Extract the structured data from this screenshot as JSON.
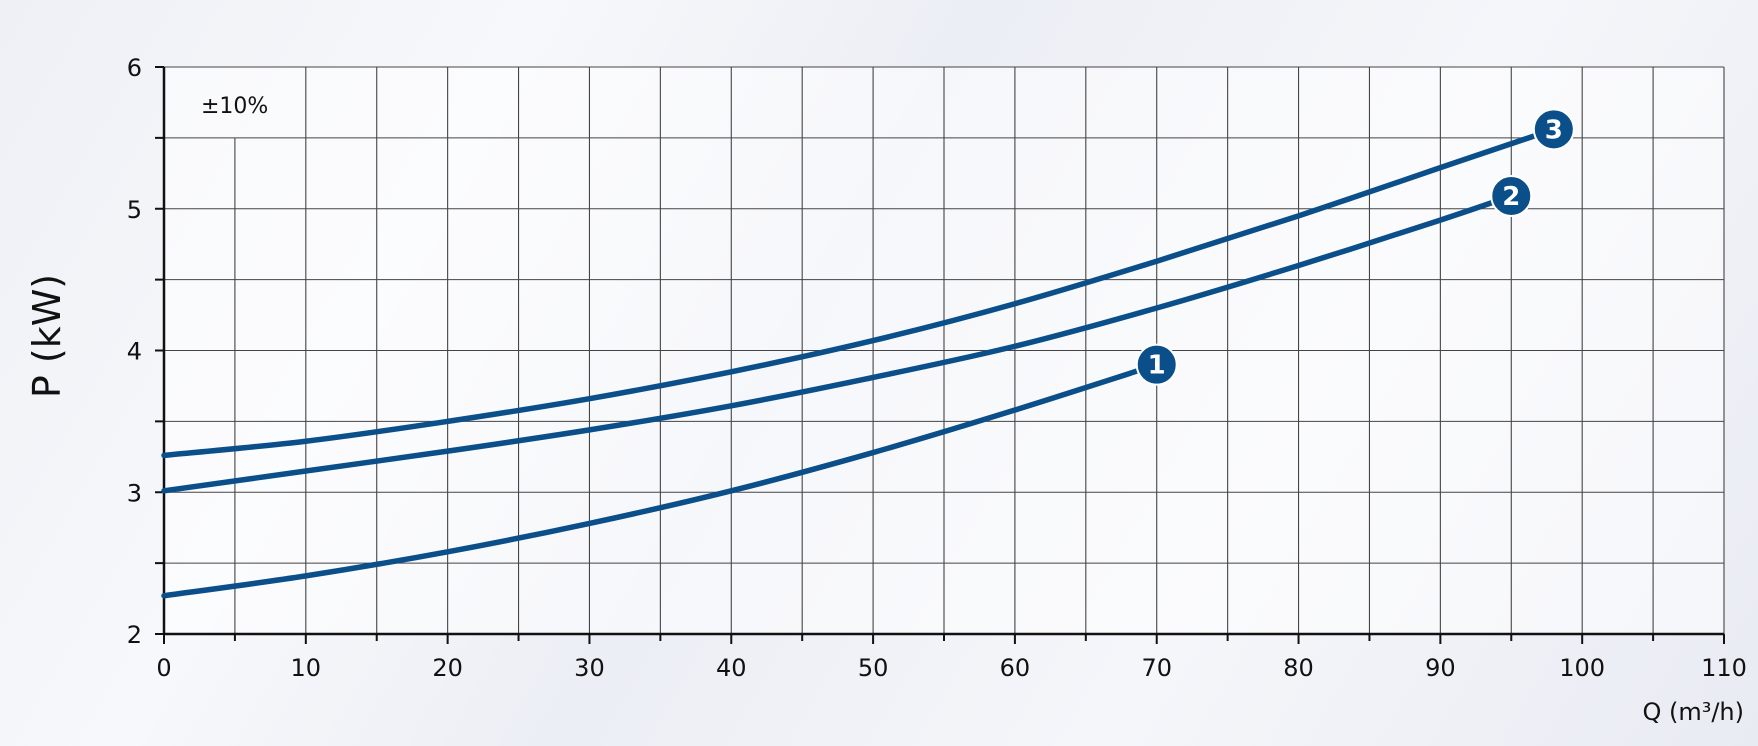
{
  "chart_data": {
    "type": "line",
    "title": "",
    "xlabel": "Q (m³/h)",
    "ylabel": "P (kW)",
    "tolerance_note": "±10%",
    "xlim": [
      0,
      110
    ],
    "ylim": [
      2,
      6
    ],
    "x_ticks": [
      "0",
      "10",
      "20",
      "30",
      "40",
      "50",
      "60",
      "70",
      "80",
      "90",
      "100",
      "110"
    ],
    "y_ticks": [
      "2",
      "3",
      "4",
      "5",
      "6"
    ],
    "x_minor_step": 5,
    "y_minor_step": 0.5,
    "grid": true,
    "line_color": "#0b4f8a",
    "series": [
      {
        "name": "1",
        "x": [
          0,
          10,
          20,
          30,
          40,
          50,
          60,
          70
        ],
        "y": [
          2.27,
          2.41,
          2.58,
          2.78,
          3.01,
          3.28,
          3.58,
          3.9
        ]
      },
      {
        "name": "2",
        "x": [
          0,
          10,
          20,
          30,
          40,
          50,
          60,
          70,
          80,
          90,
          95
        ],
        "y": [
          3.01,
          3.15,
          3.29,
          3.44,
          3.61,
          3.81,
          4.03,
          4.3,
          4.6,
          4.92,
          5.09
        ]
      },
      {
        "name": "3",
        "x": [
          0,
          10,
          20,
          30,
          40,
          50,
          60,
          70,
          80,
          90,
          98
        ],
        "y": [
          3.26,
          3.36,
          3.5,
          3.66,
          3.85,
          4.07,
          4.33,
          4.63,
          4.95,
          5.29,
          5.56
        ]
      }
    ]
  }
}
